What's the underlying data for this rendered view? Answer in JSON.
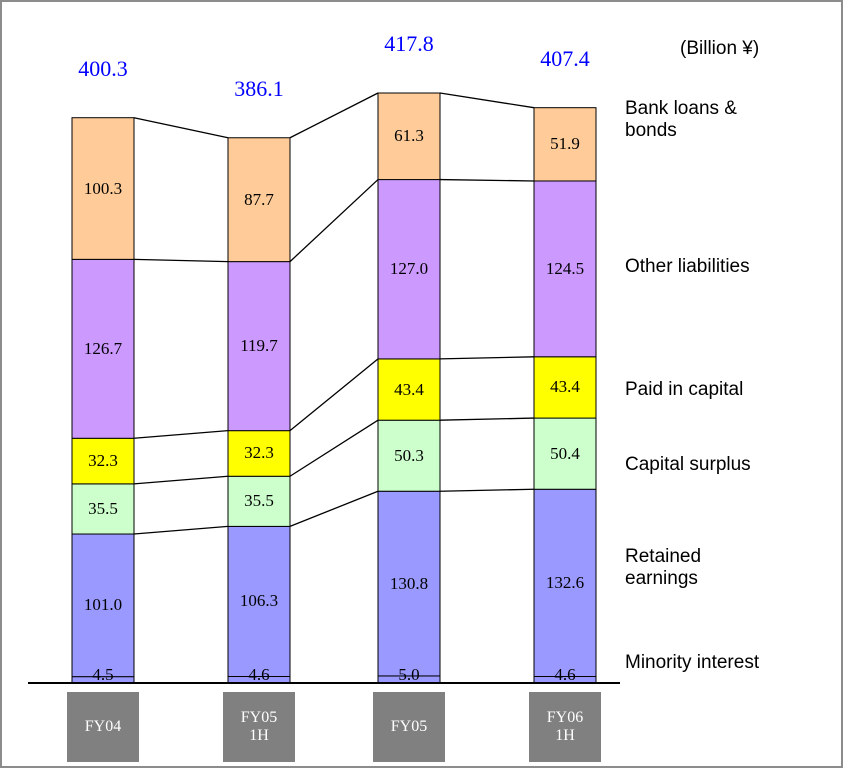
{
  "chart_data": {
    "type": "stacked-bar",
    "unit_label": "(Billion ¥)",
    "categories": [
      "FY04",
      "FY05\n1H",
      "FY05",
      "FY06\n1H"
    ],
    "totals": [
      400.3,
      386.1,
      417.8,
      407.4
    ],
    "series": [
      {
        "name": "Minority interest",
        "color": "#9999ff",
        "values": [
          4.5,
          4.6,
          5.0,
          4.6
        ],
        "value_labels": [
          "4.5",
          "4.6",
          "5.0",
          "4.6"
        ]
      },
      {
        "name": "Retained\nearnings",
        "color": "#9999ff",
        "values": [
          101.0,
          106.3,
          130.8,
          132.6
        ],
        "value_labels": [
          "101.0",
          "106.3",
          "130.8",
          "132.6"
        ]
      },
      {
        "name": "Capital surplus",
        "color": "#ccffcc",
        "values": [
          35.5,
          35.5,
          50.3,
          50.4
        ],
        "value_labels": [
          "35.5",
          "35.5",
          "50.3",
          "50.4"
        ]
      },
      {
        "name": "Paid in capital",
        "color": "#ffff00",
        "values": [
          32.3,
          32.3,
          43.4,
          43.4
        ],
        "value_labels": [
          "32.3",
          "32.3",
          "43.4",
          "43.4"
        ]
      },
      {
        "name": "Other liabilities",
        "color": "#cc99ff",
        "values": [
          126.7,
          119.7,
          127.0,
          124.5
        ],
        "value_labels": [
          "126.7",
          "119.7",
          "127.0",
          "124.5"
        ]
      },
      {
        "name": "Bank loans &\nbonds",
        "color": "#ffcc99",
        "values": [
          100.3,
          87.7,
          61.3,
          51.9
        ],
        "value_labels": [
          "100.3",
          "87.7",
          "61.3",
          "51.9"
        ]
      }
    ]
  }
}
